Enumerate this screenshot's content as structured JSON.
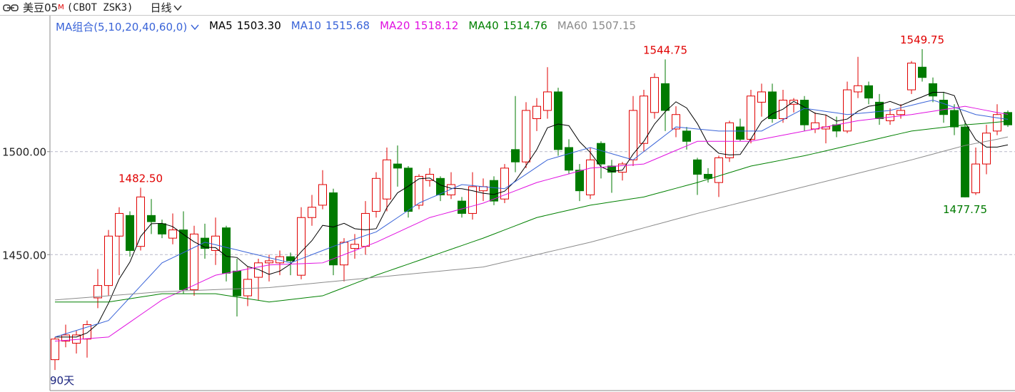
{
  "chart_data": {
    "type": "candlestick",
    "title": "美豆05",
    "title_sup": "M",
    "subtitle": "(CBOT ZSK3)",
    "period": "日线",
    "ma_label": "MA组合(5,10,20,40,60,0)",
    "footer": "90天",
    "up_color": "#e00000",
    "down_color": "#007a00",
    "ylim": [
      1384,
      1566
    ],
    "yticks": [
      {
        "value": 1450,
        "label": "1450.00"
      },
      {
        "value": 1500,
        "label": "1500.00"
      }
    ],
    "grid": true,
    "open": [
      1399,
      1408,
      1407,
      1409,
      1429,
      1435,
      1459,
      1469,
      1454,
      1469,
      1465,
      1458,
      1462,
      1433,
      1458,
      1452,
      1463,
      1442,
      1430,
      1439,
      1446,
      1446,
      1449,
      1440,
      1468,
      1474,
      1480,
      1445,
      1453,
      1454,
      1471,
      1477,
      1494,
      1492,
      1474,
      1486,
      1487,
      1479,
      1476,
      1470,
      1481,
      1486,
      1477,
      1501,
      1495,
      1516,
      1520,
      1529,
      1502,
      1491,
      1479,
      1504,
      1493,
      1490,
      1496,
      1504,
      1519,
      1533,
      1511,
      1510,
      1496,
      1489,
      1485,
      1497,
      1512,
      1506,
      1524,
      1529,
      1516,
      1523,
      1525,
      1511,
      1511,
      1513,
      1510,
      1529,
      1532,
      1524,
      1515,
      1518,
      1530,
      1541,
      1533,
      1525,
      1520,
      1512,
      1480,
      1494,
      1510,
      1519
    ],
    "high": [
      1410,
      1416,
      1413,
      1418,
      1443,
      1462,
      1473,
      1471,
      1482.5,
      1477,
      1467,
      1470,
      1471,
      1464,
      1465,
      1468,
      1464,
      1448,
      1444,
      1448,
      1450,
      1452,
      1451,
      1473,
      1479,
      1491,
      1482,
      1458,
      1460,
      1476,
      1490,
      1502,
      1503,
      1493,
      1489,
      1492,
      1488,
      1490,
      1478,
      1490,
      1487,
      1488,
      1494,
      1527,
      1524,
      1526,
      1541,
      1531,
      1506,
      1494,
      1502,
      1505,
      1496,
      1495,
      1527,
      1530,
      1538,
      1544.75,
      1522,
      1512,
      1497,
      1492,
      1498,
      1515,
      1516,
      1530,
      1533,
      1533,
      1530,
      1526,
      1527,
      1519,
      1518,
      1517,
      1534,
      1546,
      1534,
      1528,
      1521,
      1523,
      1544,
      1549.75,
      1536,
      1529,
      1523,
      1515,
      1502,
      1513,
      1523,
      1520
    ],
    "low": [
      1394,
      1405,
      1402,
      1400,
      1424,
      1430,
      1440,
      1449,
      1452,
      1460,
      1458,
      1455,
      1431,
      1430,
      1448,
      1445,
      1437,
      1420,
      1425,
      1428,
      1437,
      1440,
      1440,
      1438,
      1464,
      1472,
      1440,
      1437,
      1448,
      1450,
      1468,
      1471,
      1483,
      1468,
      1472,
      1483,
      1476,
      1477,
      1468,
      1467,
      1476,
      1474,
      1475,
      1490,
      1492,
      1510,
      1516,
      1498,
      1489,
      1476,
      1477,
      1487,
      1480,
      1486,
      1493,
      1500,
      1516,
      1510,
      1507,
      1501,
      1479,
      1485,
      1478,
      1495,
      1505,
      1504,
      1517,
      1514,
      1514,
      1519,
      1510,
      1509,
      1504,
      1507,
      1509,
      1526,
      1523,
      1513,
      1513,
      1516,
      1528,
      1534,
      1524,
      1514,
      1508,
      1477.75,
      1479,
      1489,
      1508,
      1512
    ],
    "close": [
      1409,
      1411,
      1411,
      1416,
      1435,
      1459,
      1470,
      1452,
      1478,
      1466,
      1460,
      1462,
      1433,
      1460,
      1453,
      1459,
      1441,
      1430,
      1438,
      1446,
      1447,
      1449,
      1447,
      1468,
      1473,
      1484,
      1445,
      1456,
      1455,
      1470,
      1487,
      1496,
      1492,
      1471,
      1488,
      1489,
      1479,
      1484,
      1470,
      1483,
      1483,
      1476,
      1492,
      1495,
      1520,
      1522,
      1529,
      1501,
      1491,
      1481,
      1496,
      1494,
      1490,
      1494,
      1520,
      1527,
      1536,
      1520,
      1518,
      1505,
      1489,
      1487,
      1497,
      1514,
      1506,
      1527,
      1529,
      1516,
      1525,
      1525,
      1513,
      1514,
      1512,
      1510,
      1530,
      1532,
      1526,
      1516,
      1518,
      1520,
      1543,
      1536,
      1527,
      1518,
      1512,
      1478,
      1494,
      1509,
      1518,
      1513
    ],
    "annotations": [
      {
        "value": 1482.5,
        "label": "1482.50"
      },
      {
        "value": 1544.75,
        "label": "1544.75"
      },
      {
        "value": 1549.75,
        "label": "1549.75"
      },
      {
        "value": 1477.75,
        "label": "1477.75"
      }
    ],
    "series": [
      {
        "name": "MA5",
        "color": "#000000",
        "last_label": "1503.30",
        "values": [
          1410,
          1410,
          1410,
          1412,
          1416.4,
          1426.4,
          1438.2,
          1446.4,
          1458.8,
          1465,
          1465.2,
          1463.6,
          1459.8,
          1456.2,
          1453.6,
          1453.4,
          1449.2,
          1448.6,
          1444.2,
          1442.8,
          1440.4,
          1442,
          1445.4,
          1451.4,
          1456.8,
          1464.2,
          1463.4,
          1465.2,
          1462.6,
          1462,
          1462.6,
          1472.8,
          1480,
          1483.2,
          1486.8,
          1487.2,
          1483.8,
          1482.2,
          1482,
          1481,
          1479.8,
          1479.2,
          1480.8,
          1485.8,
          1493.2,
          1501,
          1511.6,
          1513.4,
          1512.6,
          1504.8,
          1499.6,
          1492.6,
          1490.4,
          1491,
          1498.8,
          1505,
          1513.4,
          1519.4,
          1524.2,
          1521.2,
          1513.6,
          1503.8,
          1499.2,
          1498.4,
          1498.6,
          1506.2,
          1514.6,
          1518.4,
          1520.6,
          1524.4,
          1521.6,
          1518.6,
          1517.8,
          1514.8,
          1515.8,
          1519.6,
          1522,
          1522.8,
          1524.4,
          1522.4,
          1524.6,
          1526.6,
          1528.8,
          1528.8,
          1527.2,
          1514.2,
          1505.8,
          1502.2,
          1502.2,
          1503.3
        ]
      },
      {
        "name": "MA10",
        "color": "#3a64d8",
        "last_label": "1515.68",
        "values": [
          1410,
          1411.6,
          1413.2,
          1414.8,
          1416.4,
          1418,
          1423.6,
          1429.2,
          1434.8,
          1440.4,
          1446,
          1448.5,
          1451,
          1453.5,
          1456,
          1454.8,
          1453.5,
          1452.3,
          1451,
          1449.8,
          1448.5,
          1447.3,
          1446,
          1448,
          1450,
          1452,
          1454,
          1455.8,
          1457.5,
          1459.3,
          1461,
          1464.5,
          1468,
          1471.5,
          1475,
          1477.3,
          1479.5,
          1481.8,
          1484,
          1483.5,
          1483,
          1482.5,
          1482,
          1485.5,
          1489,
          1492.5,
          1496,
          1497.5,
          1499,
          1500.5,
          1502,
          1500.5,
          1499,
          1497.5,
          1496,
          1500,
          1504,
          1508,
          1512,
          1511.5,
          1511,
          1510.5,
          1510,
          1510,
          1510,
          1510,
          1510,
          1512.8,
          1515.5,
          1518.3,
          1521,
          1520.3,
          1519.5,
          1518.8,
          1518,
          1518.5,
          1519,
          1519.5,
          1520,
          1521.3,
          1522.5,
          1523.8,
          1525,
          1523.3,
          1521.5,
          1519.8,
          1518,
          1517.2,
          1516.4,
          1515.68
        ]
      },
      {
        "name": "MA20",
        "color": "#e010e0",
        "last_label": "1518.12",
        "values": [
          1408,
          1408.4,
          1408.8,
          1409.2,
          1409.6,
          1410,
          1413.6,
          1417.2,
          1420.8,
          1424.4,
          1428,
          1430.4,
          1432.8,
          1435.2,
          1437.6,
          1440,
          1441,
          1442,
          1443,
          1444,
          1445,
          1445.2,
          1445.4,
          1445.6,
          1445.8,
          1446,
          1448,
          1450,
          1452,
          1454,
          1456,
          1458.4,
          1460.8,
          1463.2,
          1465.6,
          1468,
          1469.4,
          1470.8,
          1472.2,
          1473.6,
          1475,
          1477,
          1479,
          1481,
          1483,
          1485,
          1486.4,
          1487.8,
          1489.2,
          1490.6,
          1492,
          1492.4,
          1492.8,
          1493.2,
          1493.6,
          1494,
          1496.2,
          1498.4,
          1500.6,
          1502.8,
          1505,
          1505,
          1505,
          1505,
          1505,
          1505,
          1506,
          1507,
          1508,
          1509,
          1510,
          1511,
          1512,
          1513,
          1514,
          1515,
          1515.6,
          1516.2,
          1516.8,
          1517.4,
          1518,
          1518.8,
          1519.6,
          1520.4,
          1521.2,
          1522,
          1521,
          1520,
          1519,
          1518.12
        ]
      },
      {
        "name": "MA40",
        "color": "#008000",
        "last_label": "1514.76",
        "values": [
          1427,
          1427,
          1427,
          1427,
          1427,
          1427,
          1427.8,
          1428.6,
          1429.4,
          1430.2,
          1431,
          1431,
          1431,
          1431,
          1431,
          1431,
          1430.2,
          1429.4,
          1428.6,
          1427.8,
          1427,
          1427.6,
          1428.2,
          1428.8,
          1429.4,
          1430,
          1432,
          1434,
          1436,
          1438,
          1440,
          1441.8,
          1443.6,
          1445.4,
          1447.2,
          1449,
          1450.8,
          1452.6,
          1454.4,
          1456.2,
          1458,
          1460,
          1462,
          1464,
          1466,
          1468,
          1469.2,
          1470.4,
          1471.6,
          1472.8,
          1474,
          1474.8,
          1475.6,
          1476.4,
          1477.2,
          1478,
          1479.4,
          1480.8,
          1482.2,
          1483.6,
          1485,
          1486.6,
          1488.2,
          1489.8,
          1491.4,
          1493,
          1494,
          1495,
          1496,
          1497,
          1498,
          1499.2,
          1500.4,
          1501.6,
          1502.8,
          1504,
          1505.2,
          1506.4,
          1507.6,
          1508.8,
          1510,
          1510.6,
          1511.2,
          1511.8,
          1512.4,
          1513,
          1513.4,
          1513.8,
          1514.3,
          1514.76
        ]
      },
      {
        "name": "MA60",
        "color": "#8c8c8c",
        "last_label": "1507.15",
        "values": [
          1428,
          1428.4,
          1428.8,
          1429.2,
          1429.6,
          1430,
          1430.4,
          1430.8,
          1431.2,
          1431.6,
          1432,
          1432.2,
          1432.4,
          1432.6,
          1432.8,
          1433,
          1433.2,
          1433.4,
          1433.6,
          1433.8,
          1434,
          1434.5,
          1435,
          1435.5,
          1436,
          1436.5,
          1437,
          1437.5,
          1438,
          1438.5,
          1439,
          1439.5,
          1440,
          1440.5,
          1441,
          1441.5,
          1442,
          1442.5,
          1443,
          1443.5,
          1444,
          1445.2,
          1446.4,
          1447.6,
          1448.8,
          1450,
          1451.2,
          1452.4,
          1453.6,
          1454.8,
          1456,
          1457.4,
          1458.8,
          1460.2,
          1461.6,
          1463,
          1464.4,
          1465.8,
          1467.2,
          1468.6,
          1470,
          1471.3,
          1472.6,
          1473.9,
          1475.2,
          1476.5,
          1477.8,
          1479.1,
          1480.4,
          1481.7,
          1483,
          1484.3,
          1485.6,
          1486.9,
          1488.2,
          1489.5,
          1490.8,
          1492.1,
          1493.4,
          1494.7,
          1496,
          1497.4,
          1498.8,
          1500.2,
          1501.6,
          1503,
          1504,
          1505,
          1506,
          1507.15
        ]
      }
    ]
  }
}
